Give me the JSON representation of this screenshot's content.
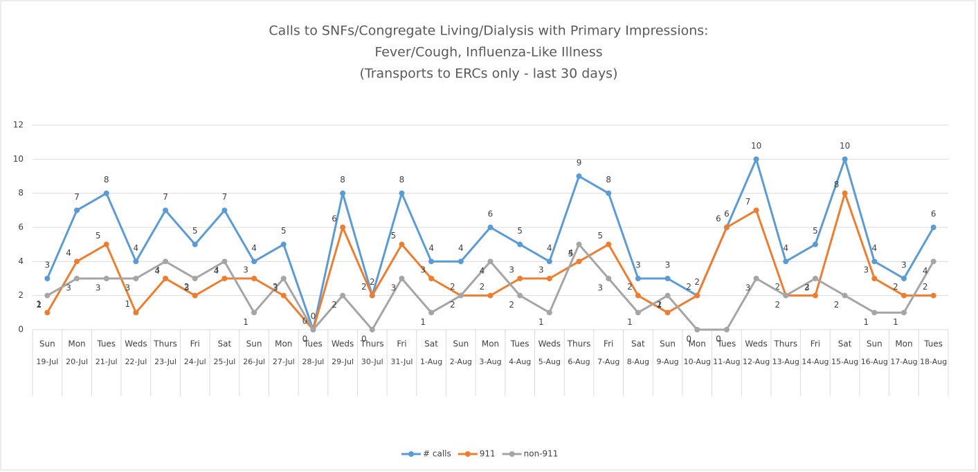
{
  "chart_data": {
    "type": "line",
    "title": [
      "Calls to SNFs/Congregate Living/Dialysis with Primary Impressions:",
      "Fever/Cough, Influenza-Like Illness",
      "(Transports to ERCs only - last 30 days)"
    ],
    "categories": [
      [
        "Sun",
        "19-Jul"
      ],
      [
        "Mon",
        "20-Jul"
      ],
      [
        "Tues",
        "21-Jul"
      ],
      [
        "Weds",
        "22-Jul"
      ],
      [
        "Thurs",
        "23-Jul"
      ],
      [
        "Fri",
        "24-Jul"
      ],
      [
        "Sat",
        "25-Jul"
      ],
      [
        "Sun",
        "26-Jul"
      ],
      [
        "Mon",
        "27-Jul"
      ],
      [
        "Tues",
        "28-Jul"
      ],
      [
        "Weds",
        "29-Jul"
      ],
      [
        "Thurs",
        "30-Jul"
      ],
      [
        "Fri",
        "31-Jul"
      ],
      [
        "Sat",
        "1-Aug"
      ],
      [
        "Sun",
        "2-Aug"
      ],
      [
        "Mon",
        "3-Aug"
      ],
      [
        "Tues",
        "4-Aug"
      ],
      [
        "Weds",
        "5-Aug"
      ],
      [
        "Thurs",
        "6-Aug"
      ],
      [
        "Fri",
        "7-Aug"
      ],
      [
        "Sat",
        "8-Aug"
      ],
      [
        "Sun",
        "9-Aug"
      ],
      [
        "Mon",
        "10-Aug"
      ],
      [
        "Tues",
        "11-Aug"
      ],
      [
        "Weds",
        "12-Aug"
      ],
      [
        "Thurs",
        "13-Aug"
      ],
      [
        "Fri",
        "14-Aug"
      ],
      [
        "Sat",
        "15-Aug"
      ],
      [
        "Sun",
        "16-Aug"
      ],
      [
        "Mon",
        "17-Aug"
      ],
      [
        "Tues",
        "18-Aug"
      ]
    ],
    "series": [
      {
        "name": "# calls",
        "color": "#5b9bd5",
        "values": [
          3,
          7,
          8,
          4,
          7,
          5,
          7,
          4,
          5,
          0,
          8,
          2,
          8,
          4,
          4,
          6,
          5,
          4,
          9,
          8,
          3,
          3,
          2,
          6,
          10,
          4,
          5,
          10,
          4,
          3,
          6
        ]
      },
      {
        "name": "911",
        "color": "#ed7d31",
        "values": [
          1,
          4,
          5,
          1,
          3,
          2,
          3,
          3,
          2,
          0,
          6,
          2,
          5,
          3,
          2,
          2,
          3,
          3,
          4,
          5,
          2,
          1,
          2,
          6,
          7,
          2,
          2,
          8,
          3,
          2,
          2
        ]
      },
      {
        "name": "non-911",
        "color": "#a5a5a5",
        "values": [
          2,
          3,
          3,
          3,
          4,
          3,
          4,
          1,
          3,
          0,
          2,
          0,
          3,
          1,
          2,
          4,
          2,
          1,
          5,
          3,
          1,
          2,
          0,
          0,
          3,
          2,
          3,
          2,
          1,
          1,
          4
        ]
      }
    ],
    "ylim": [
      0,
      12
    ],
    "yticks": [
      0,
      2,
      4,
      6,
      8,
      10,
      12
    ],
    "grid": true,
    "legend": "bottom"
  }
}
